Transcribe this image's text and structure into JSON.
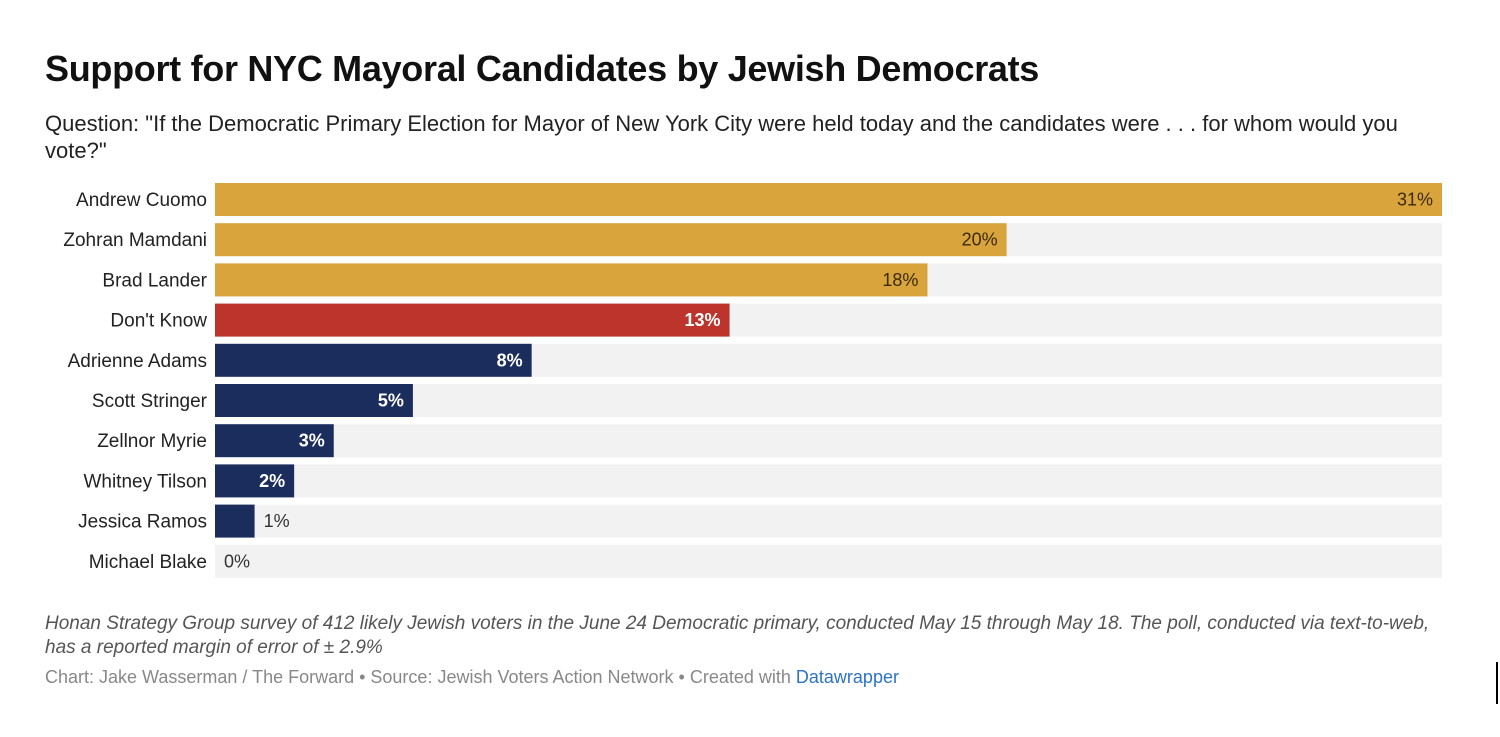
{
  "chart_data": {
    "type": "bar",
    "orientation": "horizontal",
    "title": "Support for NYC Mayoral Candidates by Jewish Democrats",
    "subtitle": "Question: \"If the Democratic Primary Election for Mayor of New York City were held today and the candidates were . . . for whom would you vote?\"",
    "categories": [
      "Andrew Cuomo",
      "Zohran Mamdani",
      "Brad Lander",
      "Don't Know",
      "Adrienne Adams",
      "Scott Stringer",
      "Zellnor Myrie",
      "Whitney Tilson",
      "Jessica Ramos",
      "Michael Blake"
    ],
    "values": [
      31,
      20,
      18,
      13,
      8,
      5,
      3,
      2,
      1,
      0
    ],
    "value_labels": [
      "31%",
      "20%",
      "18%",
      "13%",
      "8%",
      "5%",
      "3%",
      "2%",
      "1%",
      "0%"
    ],
    "groups": [
      "top",
      "top",
      "top",
      "dontknow",
      "rest",
      "rest",
      "rest",
      "rest",
      "rest",
      "rest"
    ],
    "group_colors": {
      "top": "#d9a43b",
      "dontknow": "#bc342b",
      "rest": "#1b2d5d"
    },
    "track_color": "#f2f2f2",
    "xlim": [
      0,
      31
    ],
    "xlabel": "",
    "ylabel": "",
    "grid": false,
    "legend": "none"
  },
  "notes": "Honan Strategy Group survey of 412 likely Jewish voters in the June 24 Democratic primary, conducted May 15 through May 18. The poll, conducted via text-to-web, has a reported margin of error of ± 2.9%",
  "credits": {
    "text": "Chart: Jake Wasserman / The Forward • Source: Jewish Voters Action Network • Created with ",
    "link_label": "Datawrapper"
  }
}
